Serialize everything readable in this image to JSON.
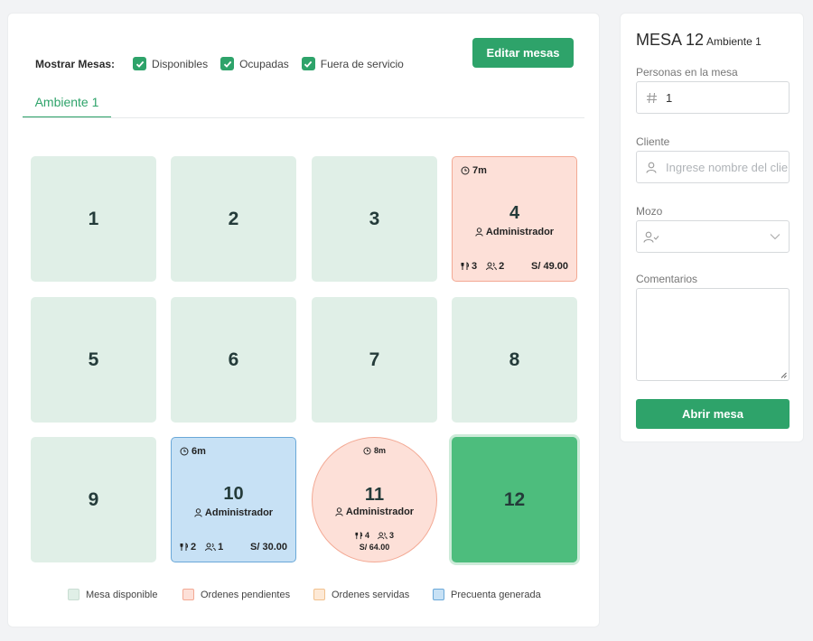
{
  "filters": {
    "title": "Mostrar Mesas:",
    "options": [
      {
        "label": "Disponibles",
        "checked": true
      },
      {
        "label": "Ocupadas",
        "checked": true
      },
      {
        "label": "Fuera de servicio",
        "checked": true
      }
    ]
  },
  "edit_button": "Editar mesas",
  "tabs": [
    {
      "label": "Ambiente 1",
      "active": true
    }
  ],
  "tables": [
    {
      "number": "1",
      "status": "available"
    },
    {
      "number": "2",
      "status": "available"
    },
    {
      "number": "3",
      "status": "available"
    },
    {
      "number": "4",
      "status": "pending",
      "time": "7m",
      "user": "Administrador",
      "dishes": "3",
      "people": "2",
      "total": "S/ 49.00"
    },
    {
      "number": "5",
      "status": "available"
    },
    {
      "number": "6",
      "status": "available"
    },
    {
      "number": "7",
      "status": "available"
    },
    {
      "number": "8",
      "status": "available"
    },
    {
      "number": "9",
      "status": "available"
    },
    {
      "number": "10",
      "status": "precuenta",
      "time": "6m",
      "user": "Administrador",
      "dishes": "2",
      "people": "1",
      "total": "S/ 30.00"
    },
    {
      "number": "11",
      "status": "pending",
      "shape": "round",
      "time": "8m",
      "user": "Administrador",
      "dishes": "4",
      "people": "3",
      "total": "S/ 64.00"
    },
    {
      "number": "12",
      "status": "selected"
    }
  ],
  "legend": [
    {
      "label": "Mesa disponible",
      "color": "#e0efe7",
      "border": "#c9ddd2"
    },
    {
      "label": "Ordenes pendientes",
      "color": "#fde0d8",
      "border": "#f3a994"
    },
    {
      "label": "Ordenes servidas",
      "color": "#fde9d6",
      "border": "#f1c18e"
    },
    {
      "label": "Precuenta generada",
      "color": "#c7e1f5",
      "border": "#6aa8d8"
    }
  ],
  "panel": {
    "title": "MESA 12",
    "subtitle": "Ambiente 1",
    "people_label": "Personas en la mesa",
    "people_value": "1",
    "client_label": "Cliente",
    "client_placeholder": "Ingrese nombre del cliente",
    "waiter_label": "Mozo",
    "comments_label": "Comentarios",
    "open_button": "Abrir mesa"
  },
  "colors": {
    "accent": "#2ea36a",
    "selected": "#4dbd7d"
  }
}
